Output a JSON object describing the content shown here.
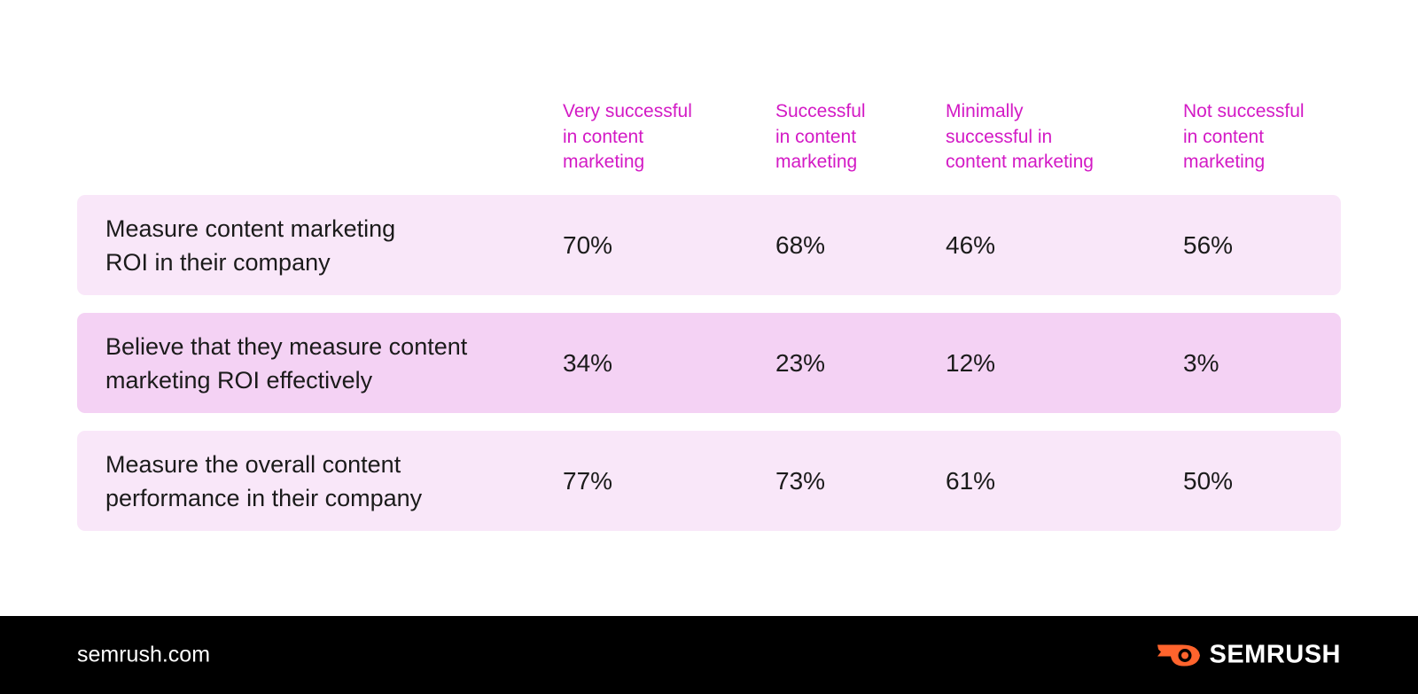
{
  "chart_data": {
    "type": "table",
    "columns": [
      "Very successful\nin content\nmarketing",
      "Successful\nin content\nmarketing",
      "Minimally\nsuccessful in\ncontent marketing",
      "Not successful\nin content\nmarketing"
    ],
    "rows": [
      {
        "label": "Measure content marketing\nROI in their company",
        "values": [
          "70%",
          "68%",
          "46%",
          "56%"
        ],
        "color": "#f9e7f9"
      },
      {
        "label": "Believe that they measure content\nmarketing ROI effectively",
        "values": [
          "34%",
          "23%",
          "12%",
          "3%"
        ],
        "color": "#f4d2f4"
      },
      {
        "label": "Measure the overall content\nperformance in their company",
        "values": [
          "77%",
          "73%",
          "61%",
          "50%"
        ],
        "color": "#f9e7f9"
      }
    ],
    "header_color": "#d31ac5"
  },
  "footer": {
    "url": "semrush.com",
    "brand": "SEMRUSH",
    "brand_icon": "semrush-fire-logo-icon",
    "brand_icon_color": "#ff642d"
  }
}
